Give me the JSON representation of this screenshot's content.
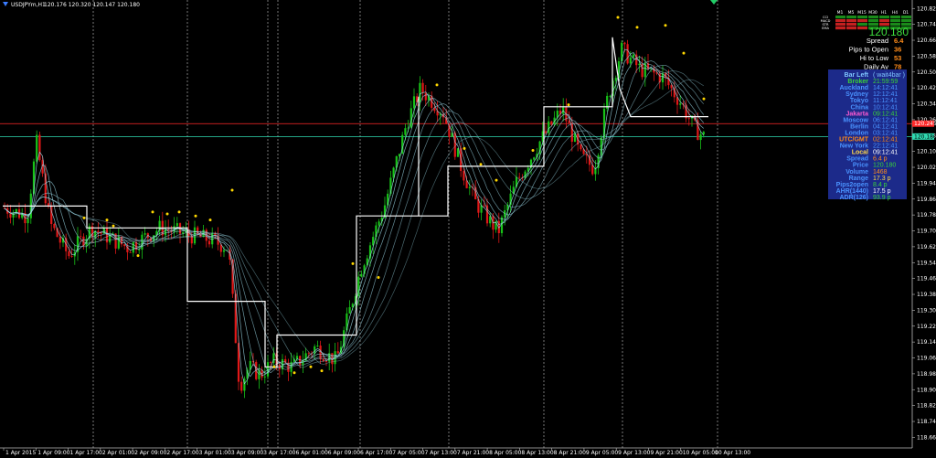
{
  "window": {
    "symbol_title": "USDJPYm,H1",
    "ohlc_text": "120.176 120.320 120.147 120.180"
  },
  "chart_data": {
    "type": "candlestick",
    "symbol": "USDJPYm",
    "timeframe": "H1",
    "ylim": [
      118.63,
      120.84
    ],
    "y_ticks": [
      "120.825",
      "120.745",
      "120.665",
      "120.585",
      "120.505",
      "120.425",
      "120.345",
      "120.265",
      "120.185",
      "120.105",
      "120.025",
      "119.945",
      "119.865",
      "119.785",
      "119.705",
      "119.625",
      "119.545",
      "119.465",
      "119.385",
      "119.305",
      "119.225",
      "119.145",
      "119.065",
      "118.985",
      "118.905",
      "118.825",
      "118.745",
      "118.665"
    ],
    "x_ticks": [
      "1 Apr 2015",
      "1 Apr 09:00",
      "1 Apr 17:00",
      "2 Apr 01:00",
      "2 Apr 09:00",
      "2 Apr 17:00",
      "3 Apr 01:00",
      "3 Apr 09:00",
      "3 Apr 17:00",
      "6 Apr 01:00",
      "6 Apr 09:00",
      "6 Apr 17:00",
      "7 Apr 05:00",
      "7 Apr 13:00",
      "7 Apr 21:00",
      "8 Apr 05:00",
      "8 Apr 13:00",
      "8 Apr 21:00",
      "9 Apr 05:00",
      "9 Apr 13:00",
      "9 Apr 21:00",
      "10 Apr 05:00",
      "10 Apr 13:00"
    ],
    "price_markers": [
      {
        "name": "red-line",
        "value": 120.245,
        "label": "120.245",
        "color": "#ff2a2a"
      },
      {
        "name": "bid-line",
        "value": 120.18,
        "label": "120.180",
        "color": "#2fd9b0"
      }
    ],
    "grid": false,
    "colors": {
      "bull": "#18c218",
      "bear": "#e01818",
      "ma": "#9ad7e6",
      "step": "#ffffff",
      "fractal": "#ffd700"
    }
  },
  "mtf_panel": {
    "headers": [
      "M1",
      "M5",
      "M15",
      "M30",
      "H1",
      "H4",
      "D1"
    ],
    "rows": [
      {
        "label": "CCI",
        "cells": [
          "#1a8a1a",
          "#1a8a1a",
          "#1a8a1a",
          "#1a8a1a",
          "#1a8a1a",
          "#1a8a1a",
          "#1a8a1a"
        ]
      },
      {
        "label": "MACD",
        "cells": [
          "#c42020",
          "#c42020",
          "#c42020",
          "#1a8a1a",
          "#c42020",
          "#1a8a1a",
          "#1a8a1a"
        ]
      },
      {
        "label": "STR",
        "cells": [
          "#c42020",
          "#c42020",
          "#1a8a1a",
          "#1a8a1a",
          "#c42020",
          "#1a8a1a",
          "#1a8a1a"
        ]
      },
      {
        "label": "EMA",
        "cells": [
          "#c42020",
          "#c42020",
          "#c42020",
          "#1a8a1a",
          "#1a8a1a",
          "#1a8a1a",
          "#1a8a1a"
        ]
      }
    ]
  },
  "price_box": {
    "price": "120.180",
    "lines": [
      {
        "label": "Spread",
        "value": "6.4"
      },
      {
        "label": "Pips to Open",
        "value": "36"
      },
      {
        "label": "Hi to Low",
        "value": "53"
      },
      {
        "label": "Daily Av",
        "value": "78"
      }
    ]
  },
  "clock_panel": {
    "rows": [
      {
        "label": "Bar Left",
        "value": "( wait4bar )",
        "label_color": "#7fc6ff",
        "value_color": "#7fc6ff"
      },
      {
        "label": "Broker",
        "value": "21:59:59",
        "label_color": "#39d339",
        "value_color": "#39d339"
      },
      {
        "label": "Auckland",
        "value": "14:12:41",
        "label_color": "#4a93ff",
        "value_color": "#4a93ff"
      },
      {
        "label": "Sydney",
        "value": "12:12:41",
        "label_color": "#4a93ff",
        "value_color": "#4a93ff"
      },
      {
        "label": "Tokyo",
        "value": "11:12:41",
        "label_color": "#4a93ff",
        "value_color": "#4a93ff"
      },
      {
        "label": "China",
        "value": "10:12:41",
        "label_color": "#4a93ff",
        "value_color": "#4a93ff"
      },
      {
        "label": "Jakarta",
        "value": "09:12:41",
        "label_color": "#ff5ad2",
        "value_color": "#39d339"
      },
      {
        "label": "Moscow",
        "value": "06:12:41",
        "label_color": "#4a93ff",
        "value_color": "#4a93ff"
      },
      {
        "label": "Berlin",
        "value": "04:12:41",
        "label_color": "#4a93ff",
        "value_color": "#4a93ff"
      },
      {
        "label": "London",
        "value": "03:12:41",
        "label_color": "#4a93ff",
        "value_color": "#4a93ff"
      },
      {
        "label": "UTC/GMT",
        "value": "02:12:41",
        "label_color": "#ff8c1a",
        "value_color": "#ff8c1a"
      },
      {
        "label": "New York",
        "value": "22:12:41",
        "label_color": "#4a93ff",
        "value_color": "#4a93ff"
      },
      {
        "label": "Local",
        "value": "09:12:41",
        "label_color": "#ffd84a",
        "value_color": "#ffffff"
      },
      {
        "label": "Spread",
        "value": "6.4 p",
        "label_color": "#4a93ff",
        "value_color": "#ff8c1a"
      },
      {
        "label": "Price",
        "value": "120.180",
        "label_color": "#4a93ff",
        "value_color": "#39d339"
      },
      {
        "label": "Volume",
        "value": "1468",
        "label_color": "#4a93ff",
        "value_color": "#ff8c1a"
      },
      {
        "label": "Range",
        "value": "17.3 p",
        "label_color": "#4a93ff",
        "value_color": "#ffd84a"
      },
      {
        "label": "Pips2open",
        "value": "8.4 p",
        "label_color": "#4a93ff",
        "value_color": "#39d339"
      },
      {
        "label": "AHR(1440)",
        "value": "17.5 p",
        "label_color": "#4a93ff",
        "value_color": "#ffffff"
      },
      {
        "label": "ADR(126)",
        "value": "93.9 p",
        "label_color": "#4a93ff",
        "value_color": "#39d339"
      }
    ]
  }
}
